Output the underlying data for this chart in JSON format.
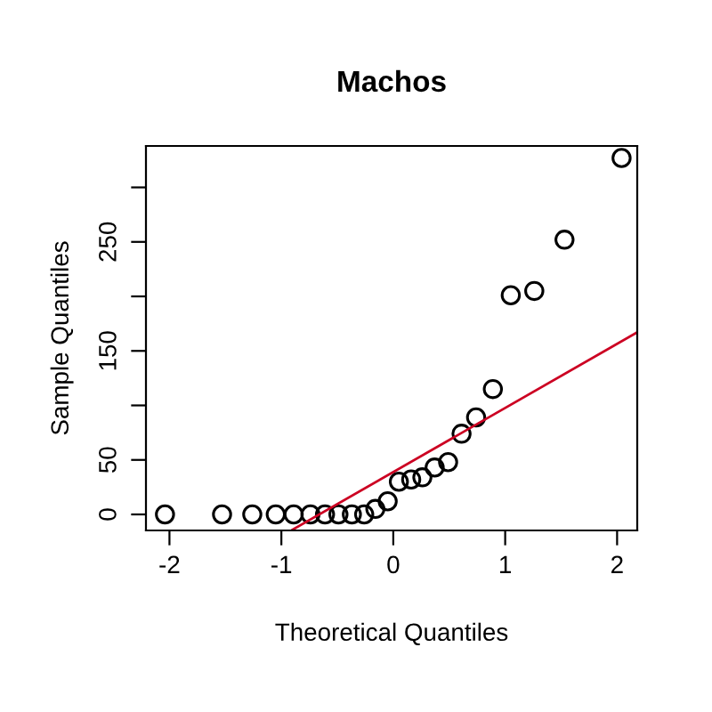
{
  "chart_data": {
    "type": "scatter",
    "title": "Machos",
    "xlabel": "Theoretical Quantiles",
    "ylabel": "Sample Quantiles",
    "xlim": [
      -2.21,
      2.18
    ],
    "ylim": [
      -14.7,
      338
    ],
    "xticks": [
      -2,
      -1,
      0,
      1,
      2
    ],
    "yticks": [
      0,
      50,
      {
        "value": 100,
        "label": null
      },
      150,
      {
        "value": 200,
        "label": null
      },
      250,
      {
        "value": 300,
        "label": null
      }
    ],
    "grid": false,
    "series": [
      {
        "marker": "circle",
        "color": "#000000",
        "x": [
          -2.04,
          -1.53,
          -1.26,
          -1.05,
          -0.89,
          -0.74,
          -0.61,
          -0.49,
          -0.37,
          -0.26,
          -0.16,
          -0.05,
          0.05,
          0.16,
          0.26,
          0.37,
          0.49,
          0.61,
          0.74,
          0.89,
          1.05,
          1.26,
          1.53,
          2.04
        ],
        "values": [
          0,
          0,
          0,
          0,
          0,
          0,
          0,
          0,
          0,
          0,
          5,
          12,
          30,
          32,
          34,
          43,
          48,
          74,
          89,
          115,
          201,
          205,
          252,
          327
        ]
      },
      {
        "type": "line",
        "color": "#cc0022",
        "line_style": "solid",
        "x": [
          -0.9,
          2.18
        ],
        "values": [
          -14,
          167
        ]
      }
    ]
  }
}
